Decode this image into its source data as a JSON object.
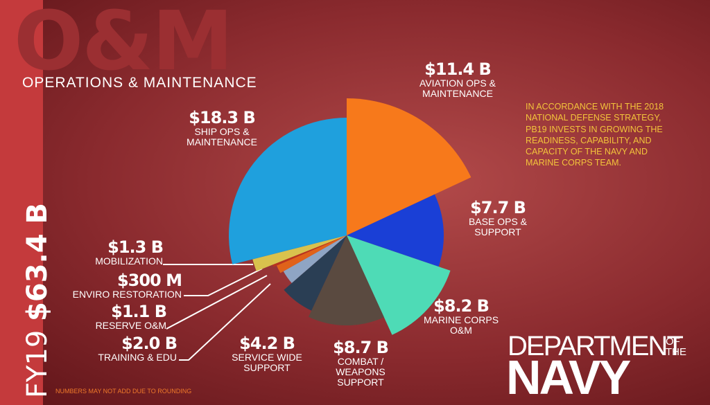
{
  "chart_data": {
    "type": "pie",
    "title": "O&M",
    "subtitle": "OPERATIONS & MAINTENANCE",
    "fiscal_year": "FY19",
    "total": "$63.4 B",
    "note": "IN ACCORDANCE WITH THE 2018 NATIONAL DEFENSE STRATEGY, PB19 INVESTS IN GROWING THE READINESS, CAPABILITY, AND CAPACITY OF THE NAVY AND MARINE CORPS TEAM.",
    "footnote": "NUMBERS MAY NOT ADD DUE TO ROUNDING",
    "categories": [
      "AVIATION OPS & MAINTENANCE",
      "BASE OPS & SUPPORT",
      "MARINE CORPS O&M",
      "COMBAT / WEAPONS SUPPORT",
      "SERVICE WIDE SUPPORT",
      "TRAINING & EDU",
      "RESERVE O&M",
      "ENVIRO RESTORATION",
      "MOBILIZATION",
      "SHIP OPS & MAINTENANCE"
    ],
    "values": [
      11.4,
      7.7,
      8.2,
      8.7,
      4.2,
      2.0,
      1.1,
      0.3,
      1.3,
      18.3
    ],
    "value_labels": [
      "$11.4 B",
      "$7.7 B",
      "$8.2 B",
      "$8.7 B",
      "$4.2 B",
      "$2.0 B",
      "$1.1 B",
      "$300 M",
      "$1.3 B",
      "$18.3 B"
    ],
    "colors": [
      "#f7791b",
      "#1a3fd6",
      "#4edbb6",
      "#5a4a40",
      "#2a3e54",
      "#8fa5c4",
      "#e0621a",
      "#b8321f",
      "#d9c24d",
      "#1fa0dd"
    ]
  },
  "brand": {
    "line1": "DEPARTMENT",
    "of_the": "OF THE",
    "line2": "NAVY"
  }
}
